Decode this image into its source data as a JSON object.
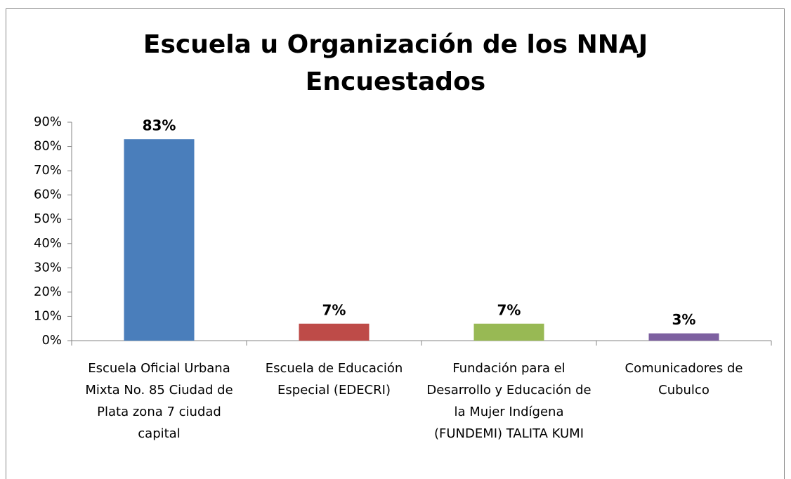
{
  "chart_data": {
    "type": "bar",
    "title": [
      "Escuela u Organización de los NNAJ",
      "Encuestados"
    ],
    "categories": [
      "Escuela Oficial Urbana Mixta No. 85 Ciudad de Plata zona 7 ciudad capital",
      "Escuela de Educación Especial (EDECRI)",
      "Fundación para el Desarrollo y Educación de la Mujer Indígena (FUNDEMI) TALITA KUMI",
      "Comunicadores de Cubulco"
    ],
    "values": [
      83,
      7,
      7,
      3
    ],
    "value_labels": [
      "83%",
      "7%",
      "7%",
      "3%"
    ],
    "colors": [
      "#4a7ebb",
      "#be4b48",
      "#98b954",
      "#7d60a0"
    ],
    "ylim": [
      0,
      90
    ],
    "yticks": [
      {
        "value": 0,
        "label": "0%"
      },
      {
        "value": 10,
        "label": "10%"
      },
      {
        "value": 20,
        "label": "20%"
      },
      {
        "value": 30,
        "label": "30%"
      },
      {
        "value": 40,
        "label": "40%"
      },
      {
        "value": 50,
        "label": "50%"
      },
      {
        "value": 60,
        "label": "60%"
      },
      {
        "value": 70,
        "label": "70%"
      },
      {
        "value": 80,
        "label": "80%"
      },
      {
        "value": 90,
        "label": "90%"
      }
    ],
    "grid": false
  }
}
